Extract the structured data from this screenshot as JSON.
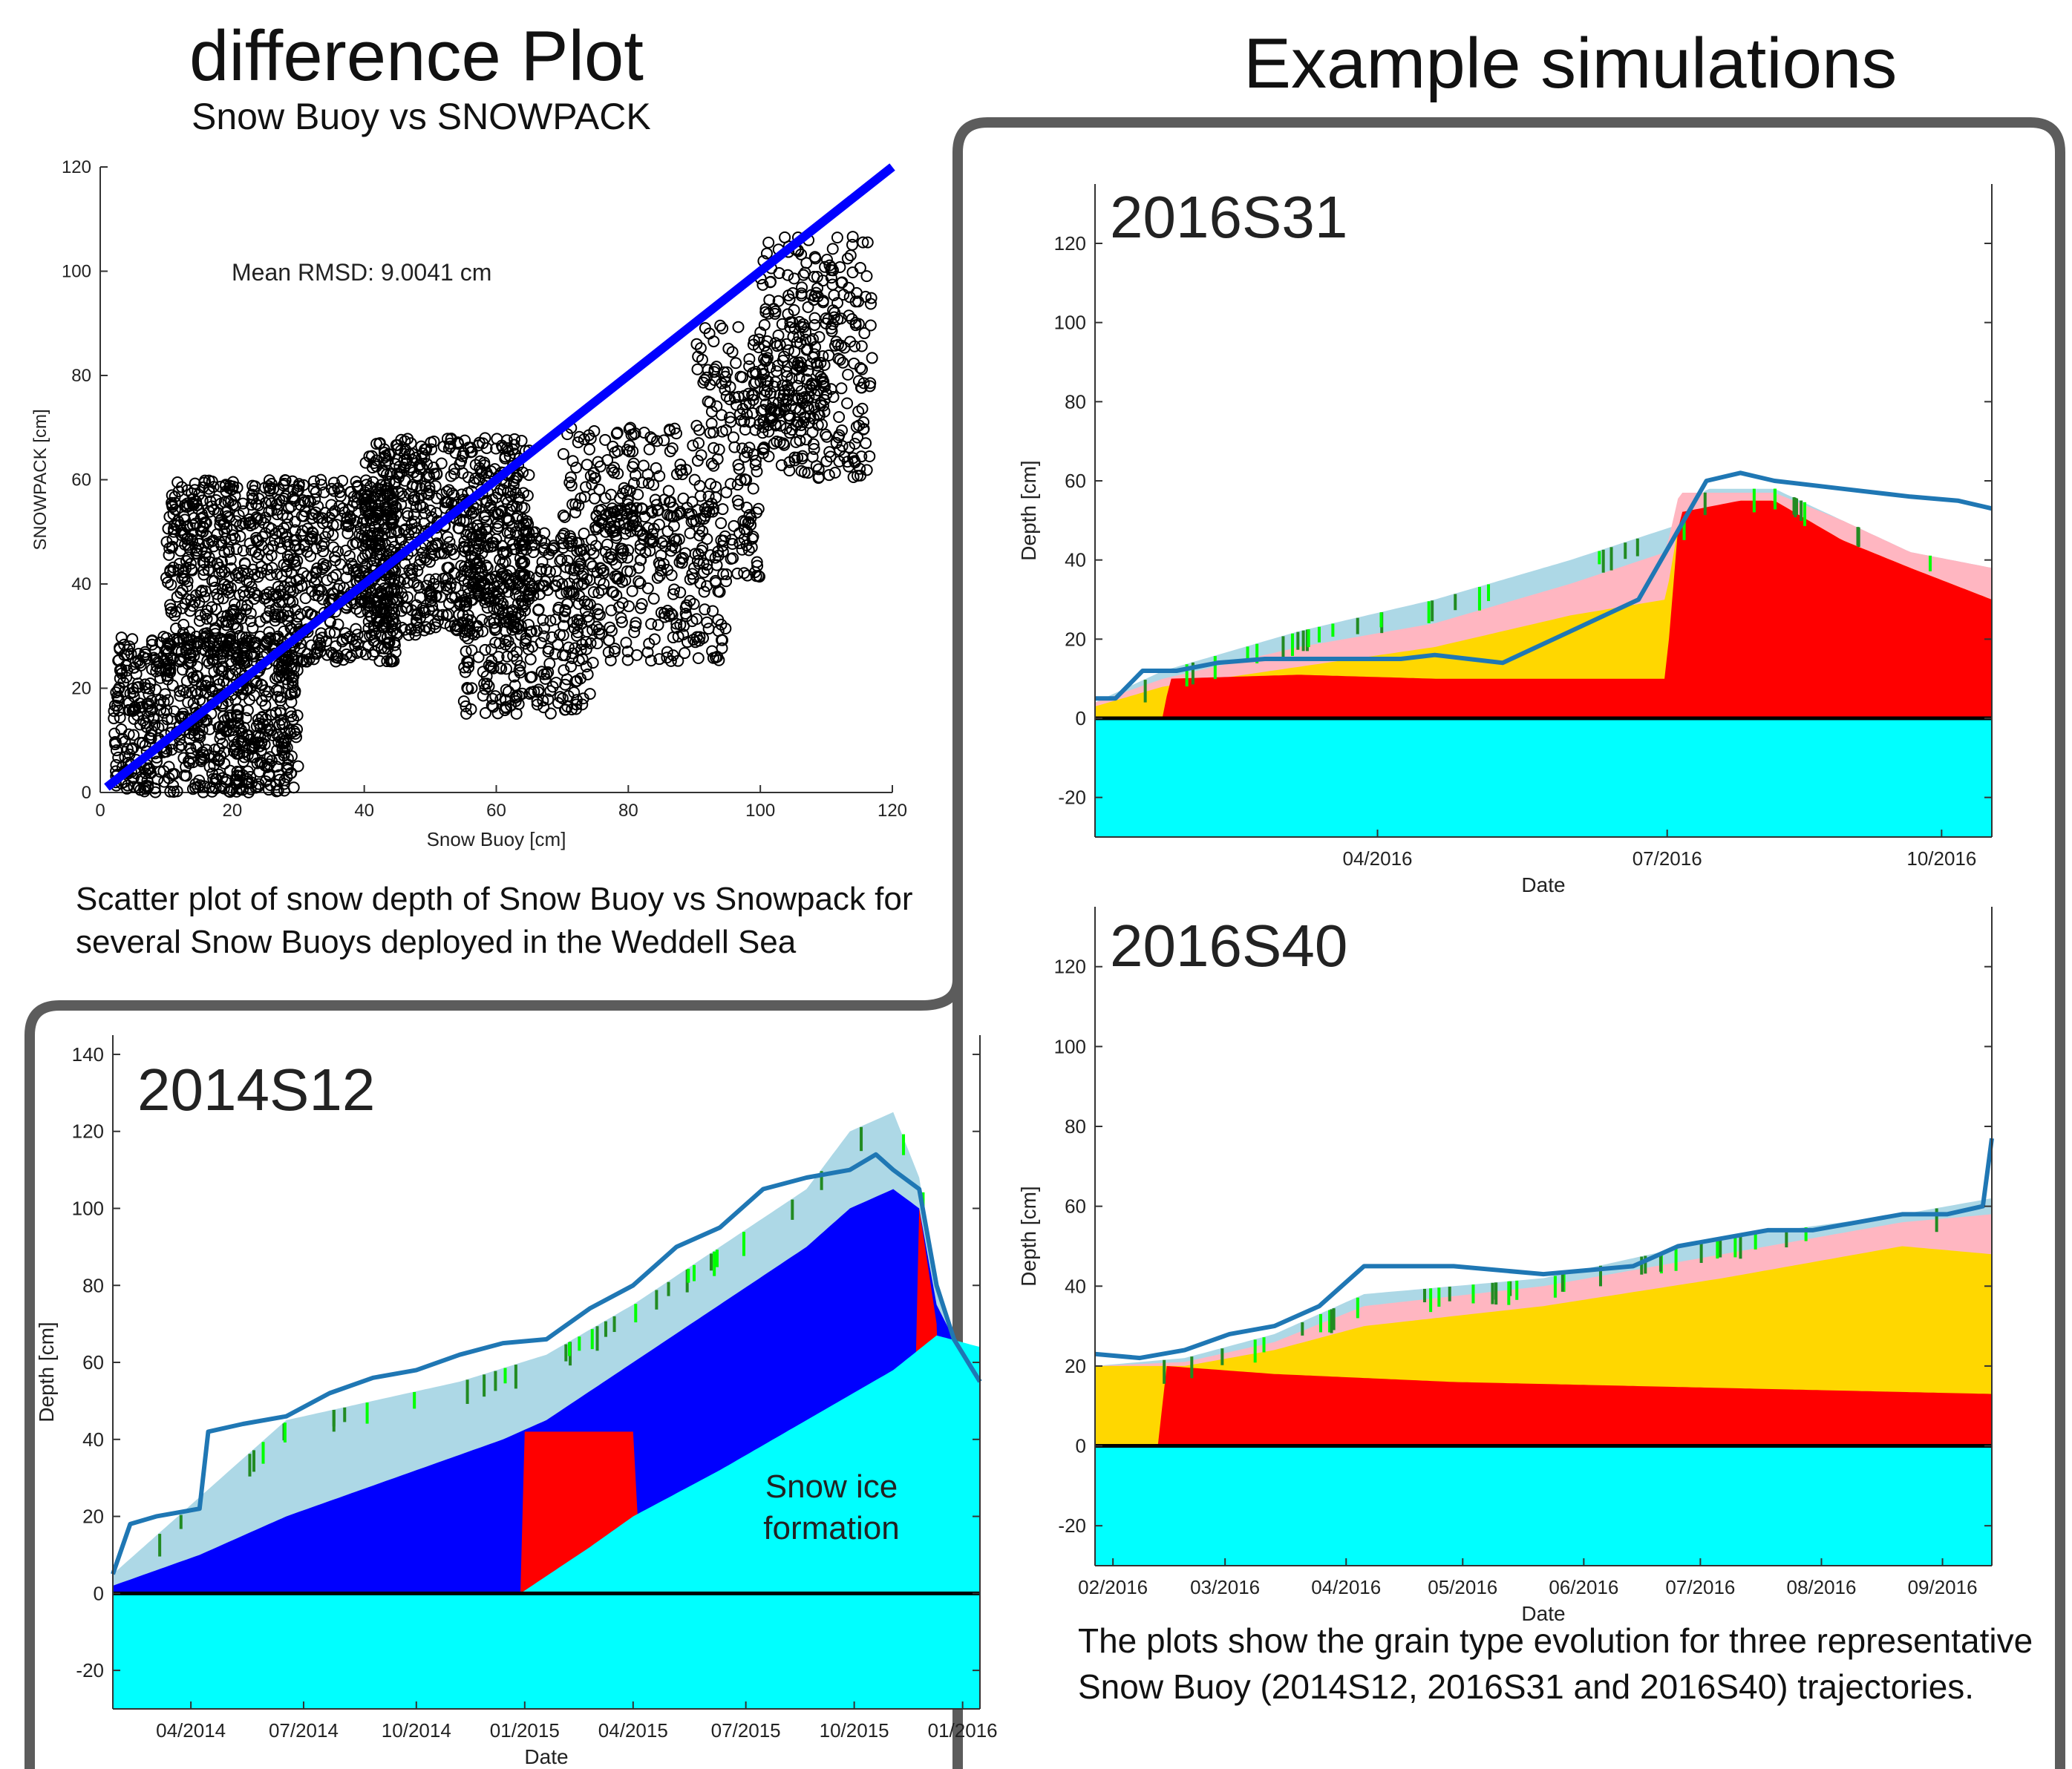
{
  "headers": {
    "left_title": "difference Plot",
    "left_subtitle": "Snow Buoy vs SNOWPACK",
    "right_title": "Example simulations"
  },
  "captions": {
    "scatter": "Scatter plot of snow depth of Snow Buoy vs Snowpack for several Snow Buoys deployed in the Weddell Sea",
    "simulations": "The plots show the grain type evolution for three representative Snow Buoy (2014S12, 2016S31 and 2016S40) trajectories."
  },
  "colors": {
    "ice": "#00ffff",
    "red": "#ff0000",
    "blue": "#0000ff",
    "yellow": "#ffd700",
    "pink": "#ffb6c1",
    "lightblue": "#add8e6",
    "green": "#228b22",
    "lime": "#00ff00",
    "buoy_line": "#1f77b4",
    "fit_line": "#0000ff",
    "frame": "#5c5c5c"
  },
  "chart_data": [
    {
      "id": "scatter",
      "type": "scatter",
      "xlabel": "Snow Buoy [cm]",
      "ylabel": "SNOWPACK [cm]",
      "xlim": [
        0,
        120
      ],
      "ylim": [
        0,
        120
      ],
      "xticks": [
        0,
        20,
        40,
        60,
        80,
        100,
        120
      ],
      "yticks": [
        0,
        20,
        40,
        60,
        80,
        100,
        120
      ],
      "annotation": "Mean RMSD: 9.0041 cm",
      "reference_line": [
        [
          1,
          1
        ],
        [
          120,
          120
        ]
      ],
      "clusters": [
        {
          "x": [
            2,
            30
          ],
          "y": [
            0,
            30
          ],
          "n": 700
        },
        {
          "x": [
            10,
            45
          ],
          "y": [
            25,
            60
          ],
          "n": 900
        },
        {
          "x": [
            40,
            65
          ],
          "y": [
            30,
            68
          ],
          "n": 700
        },
        {
          "x": [
            55,
            75
          ],
          "y": [
            15,
            50
          ],
          "n": 350
        },
        {
          "x": [
            70,
            100
          ],
          "y": [
            40,
            70
          ],
          "n": 300
        },
        {
          "x": [
            75,
            95
          ],
          "y": [
            25,
            55
          ],
          "n": 200
        },
        {
          "x": [
            100,
            117
          ],
          "y": [
            60,
            107
          ],
          "n": 300
        },
        {
          "x": [
            90,
            110
          ],
          "y": [
            70,
            90
          ],
          "n": 150
        }
      ]
    },
    {
      "id": "2016S31",
      "type": "area",
      "label": "2016S31",
      "xlabel": "Date",
      "ylabel": "Depth [cm]",
      "ylim": [
        -30,
        135
      ],
      "yticks": [
        -20,
        0,
        20,
        40,
        60,
        80,
        100,
        120
      ],
      "xticks": [
        "04/2016",
        "07/2016",
        "10/2016"
      ],
      "xtick_pos": [
        0.315,
        0.638,
        0.944
      ],
      "buoy_depth": [
        [
          0,
          5
        ],
        [
          0.03,
          5
        ],
        [
          0.07,
          12
        ],
        [
          0.12,
          12
        ],
        [
          0.18,
          14
        ],
        [
          0.25,
          15
        ],
        [
          0.35,
          15
        ],
        [
          0.45,
          15
        ],
        [
          0.5,
          16
        ],
        [
          0.55,
          15
        ],
        [
          0.6,
          14
        ],
        [
          0.65,
          18
        ],
        [
          0.7,
          22
        ],
        [
          0.75,
          26
        ],
        [
          0.8,
          30
        ],
        [
          0.85,
          45
        ],
        [
          0.9,
          60
        ],
        [
          0.95,
          62
        ],
        [
          1.0,
          60
        ],
        [
          1.1,
          58
        ],
        [
          1.2,
          56
        ],
        [
          1.27,
          55
        ],
        [
          1.32,
          53
        ]
      ],
      "layers": [
        {
          "color": "lightblue",
          "top": [
            [
              0,
              4
            ],
            [
              0.1,
              12
            ],
            [
              0.3,
              22
            ],
            [
              0.5,
              30
            ],
            [
              0.7,
              40
            ],
            [
              0.86,
              49
            ],
            [
              0.9,
              58
            ],
            [
              0.95,
              58
            ],
            [
              1.0,
              58
            ],
            [
              1.1,
              50
            ],
            [
              1.2,
              42
            ],
            [
              1.32,
              38
            ]
          ]
        },
        {
          "color": "pink",
          "top": [
            [
              0,
              4
            ],
            [
              0.1,
              10
            ],
            [
              0.3,
              18
            ],
            [
              0.5,
              24
            ],
            [
              0.7,
              34
            ],
            [
              0.84,
              42
            ],
            [
              0.86,
              57
            ],
            [
              0.95,
              57
            ],
            [
              1.0,
              57
            ],
            [
              1.1,
              50
            ],
            [
              1.2,
              42
            ],
            [
              1.32,
              38
            ]
          ]
        },
        {
          "color": "yellow",
          "top": [
            [
              0,
              3
            ],
            [
              0.1,
              8
            ],
            [
              0.3,
              13
            ],
            [
              0.5,
              18
            ],
            [
              0.7,
              26
            ],
            [
              0.84,
              30
            ],
            [
              0.86,
              50
            ],
            [
              0.95,
              55
            ],
            [
              1.0,
              55
            ],
            [
              1.1,
              45
            ],
            [
              1.2,
              38
            ],
            [
              1.32,
              30
            ]
          ]
        },
        {
          "color": "red",
          "top": [
            [
              0,
              0
            ],
            [
              0.1,
              0
            ],
            [
              0.11,
              10
            ],
            [
              0.3,
              11
            ],
            [
              0.5,
              10
            ],
            [
              0.7,
              10
            ],
            [
              0.84,
              10
            ],
            [
              0.86,
              52
            ],
            [
              0.95,
              55
            ],
            [
              1.0,
              55
            ],
            [
              1.1,
              45
            ],
            [
              1.2,
              38
            ],
            [
              1.32,
              30
            ]
          ]
        }
      ]
    },
    {
      "id": "2016S40",
      "type": "area",
      "label": "2016S40",
      "xlabel": "Date",
      "ylabel": "Depth [cm]",
      "ylim": [
        -30,
        135
      ],
      "yticks": [
        -20,
        0,
        20,
        40,
        60,
        80,
        100,
        120
      ],
      "xticks": [
        "02/2016",
        "03/2016",
        "04/2016",
        "05/2016",
        "06/2016",
        "07/2016",
        "08/2016",
        "09/2016"
      ],
      "xtick_pos": [
        0.02,
        0.145,
        0.28,
        0.41,
        0.545,
        0.675,
        0.81,
        0.945
      ],
      "buoy_depth": [
        [
          0,
          23
        ],
        [
          0.05,
          22
        ],
        [
          0.1,
          24
        ],
        [
          0.15,
          28
        ],
        [
          0.2,
          30
        ],
        [
          0.25,
          35
        ],
        [
          0.3,
          45
        ],
        [
          0.4,
          45
        ],
        [
          0.5,
          43
        ],
        [
          0.55,
          44
        ],
        [
          0.6,
          45
        ],
        [
          0.65,
          50
        ],
        [
          0.7,
          52
        ],
        [
          0.75,
          54
        ],
        [
          0.8,
          54
        ],
        [
          0.85,
          56
        ],
        [
          0.9,
          58
        ],
        [
          0.95,
          58
        ],
        [
          0.99,
          60
        ],
        [
          1.0,
          77
        ]
      ],
      "layers": [
        {
          "color": "lightblue",
          "top": [
            [
              0,
              20
            ],
            [
              0.1,
              22
            ],
            [
              0.2,
              28
            ],
            [
              0.3,
              38
            ],
            [
              0.5,
              42
            ],
            [
              0.7,
              52
            ],
            [
              0.9,
              58
            ],
            [
              1.0,
              62
            ]
          ]
        },
        {
          "color": "pink",
          "top": [
            [
              0,
              20
            ],
            [
              0.1,
              21
            ],
            [
              0.2,
              26
            ],
            [
              0.3,
              35
            ],
            [
              0.5,
              40
            ],
            [
              0.7,
              48
            ],
            [
              0.9,
              56
            ],
            [
              1.0,
              58
            ]
          ]
        },
        {
          "color": "yellow",
          "top": [
            [
              0,
              20
            ],
            [
              0.1,
              20
            ],
            [
              0.2,
              24
            ],
            [
              0.3,
              30
            ],
            [
              0.5,
              35
            ],
            [
              0.7,
              42
            ],
            [
              0.9,
              50
            ],
            [
              1.0,
              48
            ]
          ]
        },
        {
          "color": "red",
          "top": [
            [
              0,
              0
            ],
            [
              0.07,
              0
            ],
            [
              0.08,
              20
            ],
            [
              0.2,
              18
            ],
            [
              0.4,
              16
            ],
            [
              0.6,
              15
            ],
            [
              0.8,
              14
            ],
            [
              1.0,
              13
            ]
          ]
        }
      ]
    },
    {
      "id": "2014S12",
      "type": "area",
      "label": "2014S12",
      "annotation": "Snow ice formation",
      "xlabel": "Date",
      "ylabel": "Depth [cm]",
      "ylim": [
        -30,
        145
      ],
      "yticks": [
        -20,
        0,
        20,
        40,
        60,
        80,
        100,
        120,
        140
      ],
      "xticks": [
        "04/2014",
        "07/2014",
        "10/2014",
        "01/2015",
        "04/2015",
        "07/2015",
        "10/2015",
        "01/2016"
      ],
      "xtick_pos": [
        0.09,
        0.22,
        0.35,
        0.475,
        0.6,
        0.73,
        0.855,
        0.98
      ],
      "buoy_depth": [
        [
          0,
          5
        ],
        [
          0.02,
          18
        ],
        [
          0.05,
          20
        ],
        [
          0.1,
          22
        ],
        [
          0.11,
          42
        ],
        [
          0.15,
          44
        ],
        [
          0.2,
          46
        ],
        [
          0.25,
          52
        ],
        [
          0.3,
          56
        ],
        [
          0.35,
          58
        ],
        [
          0.4,
          62
        ],
        [
          0.45,
          65
        ],
        [
          0.5,
          66
        ],
        [
          0.55,
          74
        ],
        [
          0.6,
          80
        ],
        [
          0.65,
          90
        ],
        [
          0.7,
          95
        ],
        [
          0.75,
          105
        ],
        [
          0.8,
          108
        ],
        [
          0.85,
          110
        ],
        [
          0.88,
          114
        ],
        [
          0.9,
          110
        ],
        [
          0.93,
          105
        ],
        [
          0.95,
          80
        ],
        [
          0.97,
          66
        ],
        [
          1.0,
          55
        ]
      ],
      "layers": [
        {
          "color": "lightblue",
          "top": [
            [
              0,
              5
            ],
            [
              0.05,
              15
            ],
            [
              0.1,
              25
            ],
            [
              0.2,
              45
            ],
            [
              0.3,
              50
            ],
            [
              0.4,
              55
            ],
            [
              0.5,
              62
            ],
            [
              0.6,
              75
            ],
            [
              0.7,
              90
            ],
            [
              0.8,
              105
            ],
            [
              0.85,
              120
            ],
            [
              0.9,
              125
            ],
            [
              0.93,
              108
            ],
            [
              0.95,
              80
            ],
            [
              0.97,
              66
            ],
            [
              1.0,
              55
            ]
          ]
        },
        {
          "color": "blue",
          "top": [
            [
              0,
              2
            ],
            [
              0.1,
              10
            ],
            [
              0.2,
              20
            ],
            [
              0.3,
              28
            ],
            [
              0.4,
              36
            ],
            [
              0.45,
              40
            ],
            [
              0.5,
              45
            ],
            [
              0.6,
              60
            ],
            [
              0.7,
              75
            ],
            [
              0.8,
              90
            ],
            [
              0.85,
              100
            ],
            [
              0.9,
              105
            ],
            [
              0.93,
              100
            ],
            [
              0.95,
              75
            ],
            [
              0.97,
              66
            ],
            [
              1.0,
              55
            ]
          ]
        },
        {
          "color": "red",
          "top": [
            [
              0,
              0
            ],
            [
              0.92,
              0
            ],
            [
              0.93,
              100
            ],
            [
              0.95,
              70
            ],
            [
              0.96,
              0
            ]
          ]
        },
        {
          "color": "red",
          "top": [
            [
              0,
              0
            ],
            [
              0.47,
              0
            ],
            [
              0.475,
              42
            ],
            [
              0.6,
              42
            ],
            [
              0.61,
              0
            ]
          ]
        }
      ],
      "ice_top": [
        [
          0,
          0
        ],
        [
          0.47,
          0
        ],
        [
          0.55,
          12
        ],
        [
          0.6,
          20
        ],
        [
          0.7,
          32
        ],
        [
          0.8,
          45
        ],
        [
          0.9,
          58
        ],
        [
          0.95,
          67
        ],
        [
          1.0,
          64
        ]
      ]
    }
  ]
}
